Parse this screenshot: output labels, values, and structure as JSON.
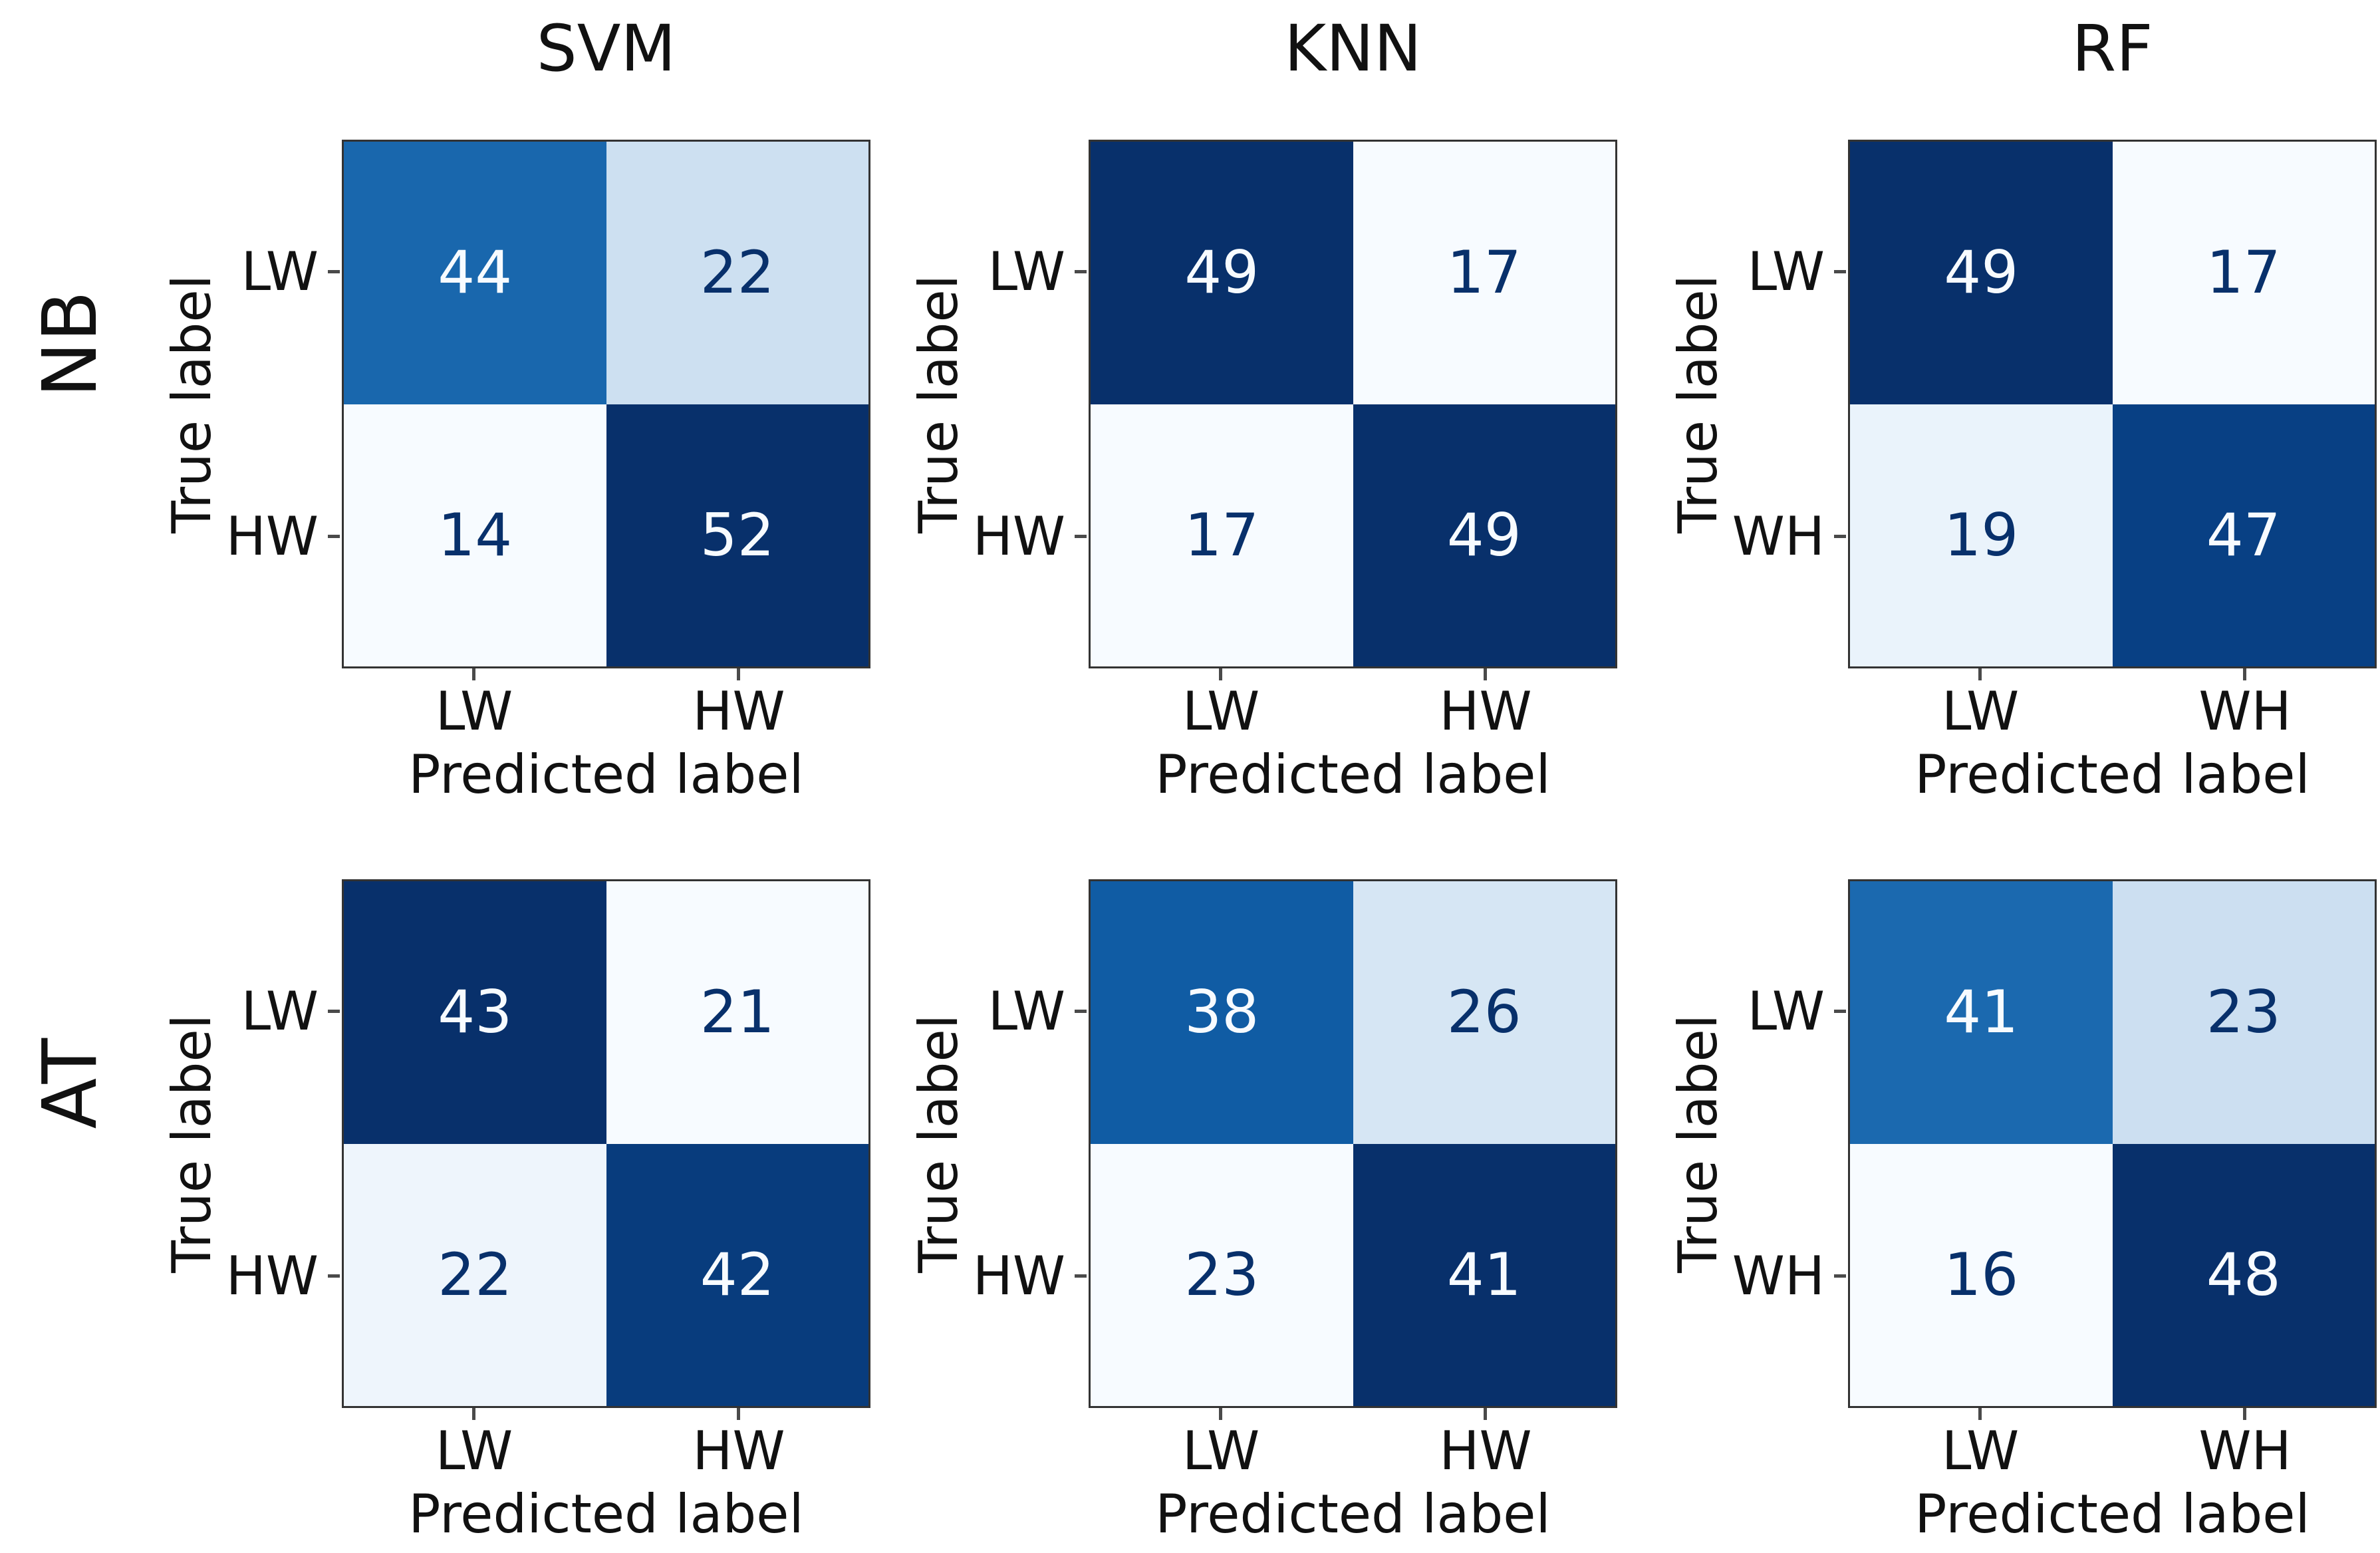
{
  "figure": {
    "background": "#ffffff",
    "axis_color": "#333333",
    "colormap": "Blues",
    "column_titles": [
      "SVM",
      "KNN",
      "RF"
    ],
    "row_labels": [
      "NB",
      "AT"
    ]
  },
  "chart_data": [
    {
      "type": "heatmap",
      "row_label": "NB",
      "column_title": "SVM",
      "xlabel": "Predicted label",
      "ylabel": "True label",
      "x_ticks": [
        "LW",
        "HW"
      ],
      "y_ticks": [
        "LW",
        "HW"
      ],
      "matrix": [
        [
          44,
          22
        ],
        [
          14,
          52
        ]
      ],
      "cells": [
        {
          "value": "44",
          "bg": "#1967ad",
          "fg": "#f7fbff"
        },
        {
          "value": "22",
          "bg": "#cde0f1",
          "fg": "#08306b"
        },
        {
          "value": "14",
          "bg": "#f7fbff",
          "fg": "#08306b"
        },
        {
          "value": "52",
          "bg": "#08306b",
          "fg": "#f7fbff"
        }
      ]
    },
    {
      "type": "heatmap",
      "row_label": "NB",
      "column_title": "KNN",
      "xlabel": "Predicted label",
      "ylabel": "True label",
      "x_ticks": [
        "LW",
        "HW"
      ],
      "y_ticks": [
        "LW",
        "HW"
      ],
      "matrix": [
        [
          49,
          17
        ],
        [
          17,
          49
        ]
      ],
      "cells": [
        {
          "value": "49",
          "bg": "#08306b",
          "fg": "#f7fbff"
        },
        {
          "value": "17",
          "bg": "#f7fbff",
          "fg": "#08306b"
        },
        {
          "value": "17",
          "bg": "#f7fbff",
          "fg": "#08306b"
        },
        {
          "value": "49",
          "bg": "#08306b",
          "fg": "#f7fbff"
        }
      ]
    },
    {
      "type": "heatmap",
      "row_label": "NB",
      "column_title": "RF",
      "xlabel": "Predicted label",
      "ylabel": "True label",
      "x_ticks": [
        "LW",
        "WH"
      ],
      "y_ticks": [
        "LW",
        "WH"
      ],
      "matrix": [
        [
          49,
          17
        ],
        [
          19,
          47
        ]
      ],
      "cells": [
        {
          "value": "49",
          "bg": "#08306b",
          "fg": "#f7fbff"
        },
        {
          "value": "17",
          "bg": "#f7fbff",
          "fg": "#08306b"
        },
        {
          "value": "19",
          "bg": "#eaf3fb",
          "fg": "#08306b"
        },
        {
          "value": "47",
          "bg": "#084084",
          "fg": "#f7fbff"
        }
      ]
    },
    {
      "type": "heatmap",
      "row_label": "AT",
      "column_title": "SVM",
      "xlabel": "Predicted label",
      "ylabel": "True label",
      "x_ticks": [
        "LW",
        "HW"
      ],
      "y_ticks": [
        "LW",
        "HW"
      ],
      "matrix": [
        [
          43,
          21
        ],
        [
          22,
          42
        ]
      ],
      "cells": [
        {
          "value": "43",
          "bg": "#08306b",
          "fg": "#f7fbff"
        },
        {
          "value": "21",
          "bg": "#f7fbff",
          "fg": "#08306b"
        },
        {
          "value": "22",
          "bg": "#eef5fc",
          "fg": "#08306b"
        },
        {
          "value": "42",
          "bg": "#083c7d",
          "fg": "#f7fbff"
        }
      ]
    },
    {
      "type": "heatmap",
      "row_label": "AT",
      "column_title": "KNN",
      "xlabel": "Predicted label",
      "ylabel": "True label",
      "x_ticks": [
        "LW",
        "HW"
      ],
      "y_ticks": [
        "LW",
        "HW"
      ],
      "matrix": [
        [
          38,
          26
        ],
        [
          23,
          41
        ]
      ],
      "cells": [
        {
          "value": "38",
          "bg": "#105ca4",
          "fg": "#f7fbff"
        },
        {
          "value": "26",
          "bg": "#d6e6f4",
          "fg": "#08306b"
        },
        {
          "value": "23",
          "bg": "#f7fbff",
          "fg": "#08306b"
        },
        {
          "value": "41",
          "bg": "#08306b",
          "fg": "#f7fbff"
        }
      ]
    },
    {
      "type": "heatmap",
      "row_label": "AT",
      "column_title": "RF",
      "xlabel": "Predicted label",
      "ylabel": "True label",
      "x_ticks": [
        "LW",
        "WH"
      ],
      "y_ticks": [
        "LW",
        "WH"
      ],
      "matrix": [
        [
          41,
          23
        ],
        [
          16,
          48
        ]
      ],
      "cells": [
        {
          "value": "41",
          "bg": "#1b69af",
          "fg": "#f7fbff"
        },
        {
          "value": "23",
          "bg": "#ccdff1",
          "fg": "#08306b"
        },
        {
          "value": "16",
          "bg": "#f7fbff",
          "fg": "#08306b"
        },
        {
          "value": "48",
          "bg": "#08306b",
          "fg": "#f7fbff"
        }
      ]
    }
  ]
}
